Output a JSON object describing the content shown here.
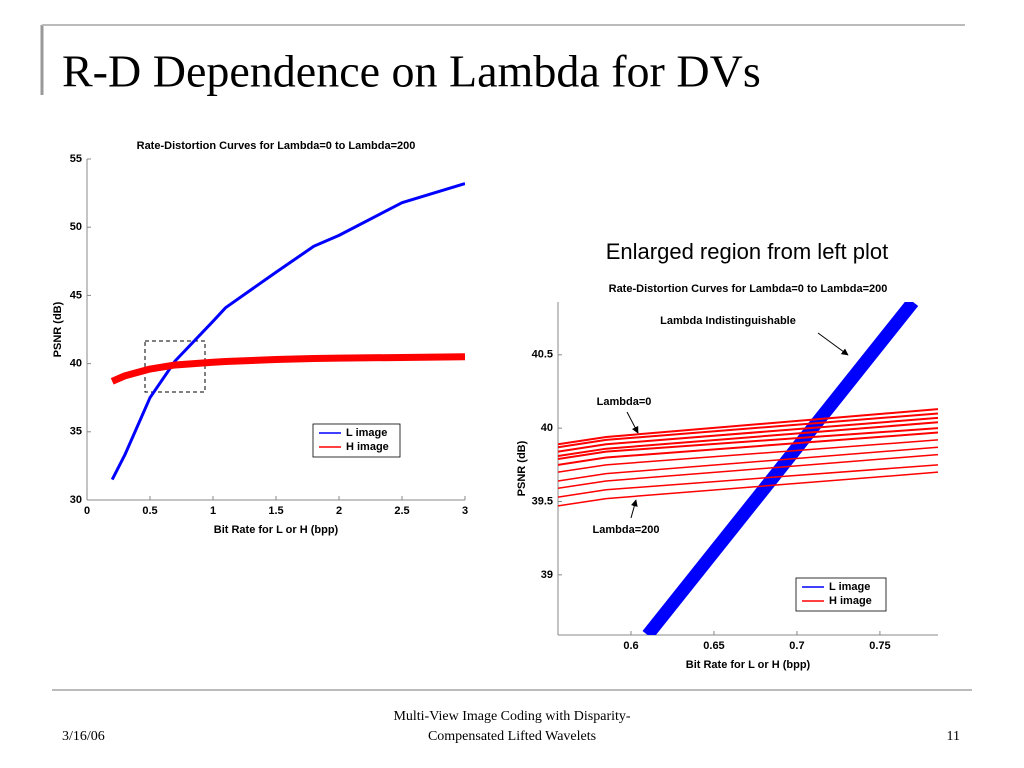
{
  "slide_title": "R-D Dependence on Lambda for DVs",
  "caption": "Enlarged region from left plot",
  "footer": {
    "date": "3/16/06",
    "center": [
      "Multi-View Image Coding with Disparity-",
      "Compensated Lifted Wavelets"
    ],
    "page": "11"
  },
  "chart_data": [
    {
      "type": "line",
      "title": "Rate-Distortion Curves for Lambda=0 to Lambda=200",
      "xlabel": "Bit Rate for L or H (bpp)",
      "ylabel": "PSNR (dB)",
      "xlim": [
        0,
        3
      ],
      "ylim": [
        30,
        55
      ],
      "xticks": [
        0,
        0.5,
        1,
        1.5,
        2,
        2.5,
        3
      ],
      "yticks": [
        30,
        35,
        40,
        45,
        50,
        55
      ],
      "grid": false,
      "legend": "lower right",
      "x": [
        0.2,
        0.3,
        0.5,
        0.7,
        1.0,
        1.1,
        1.5,
        1.8,
        2.0,
        2.5,
        3.0
      ],
      "series": [
        {
          "name": "L image",
          "color": "#0000ff",
          "values": [
            31.5,
            33.3,
            37.5,
            40.2,
            43.1,
            44.1,
            46.7,
            48.6,
            49.4,
            51.8,
            53.2
          ]
        },
        {
          "name": "H image",
          "color": "#ff0000",
          "values": [
            38.7,
            39.1,
            39.6,
            39.9,
            40.1,
            40.15,
            40.3,
            40.37,
            40.4,
            40.45,
            40.5
          ]
        }
      ]
    },
    {
      "type": "line",
      "title": "Rate-Distortion Curves for Lambda=0 to Lambda=200",
      "xlabel": "Bit Rate for L or H (bpp)",
      "ylabel": "PSNR (dB)",
      "xlim": [
        0.556,
        0.785
      ],
      "ylim": [
        38.59,
        40.86
      ],
      "xticks": [
        0.6,
        0.65,
        0.7,
        0.75
      ],
      "yticks": [
        39,
        39.5,
        40,
        40.5
      ],
      "grid": false,
      "legend": "lower right",
      "annotations": [
        "Lambda Indistinguishable",
        "Lambda=0",
        "Lambda=200"
      ],
      "series": [
        {
          "name": "L image",
          "color": "#0000ff",
          "x": [
            0.61,
            0.77
          ],
          "values": [
            38.59,
            40.86
          ]
        },
        {
          "name": "H image",
          "color": "#ff0000",
          "x": [
            0.556,
            0.585,
            0.785
          ],
          "values": [
            39.89,
            39.94,
            40.13
          ]
        },
        {
          "color": "#ff0000",
          "x": [
            0.556,
            0.585,
            0.785
          ],
          "values": [
            39.87,
            39.92,
            40.1
          ]
        },
        {
          "color": "#ff0000",
          "x": [
            0.556,
            0.585,
            0.785
          ],
          "values": [
            39.84,
            39.89,
            40.07
          ]
        },
        {
          "color": "#ff0000",
          "x": [
            0.556,
            0.585,
            0.785
          ],
          "values": [
            39.81,
            39.86,
            40.04
          ]
        },
        {
          "color": "#ff0000",
          "x": [
            0.556,
            0.585,
            0.785
          ],
          "values": [
            39.79,
            39.84,
            40.0
          ]
        },
        {
          "color": "#ff0000",
          "x": [
            0.556,
            0.585,
            0.785
          ],
          "values": [
            39.75,
            39.8,
            39.97
          ]
        },
        {
          "color": "#ff0000",
          "x": [
            0.556,
            0.585,
            0.785
          ],
          "values": [
            39.7,
            39.75,
            39.92
          ]
        },
        {
          "color": "#ff0000",
          "x": [
            0.556,
            0.585,
            0.785
          ],
          "values": [
            39.64,
            39.69,
            39.87
          ]
        },
        {
          "color": "#ff0000",
          "x": [
            0.556,
            0.585,
            0.785
          ],
          "values": [
            39.59,
            39.64,
            39.82
          ]
        },
        {
          "color": "#ff0000",
          "x": [
            0.556,
            0.585,
            0.785
          ],
          "values": [
            39.53,
            39.58,
            39.75
          ]
        },
        {
          "color": "#ff0000",
          "x": [
            0.556,
            0.585,
            0.785
          ],
          "values": [
            39.47,
            39.52,
            39.7
          ]
        }
      ]
    }
  ]
}
